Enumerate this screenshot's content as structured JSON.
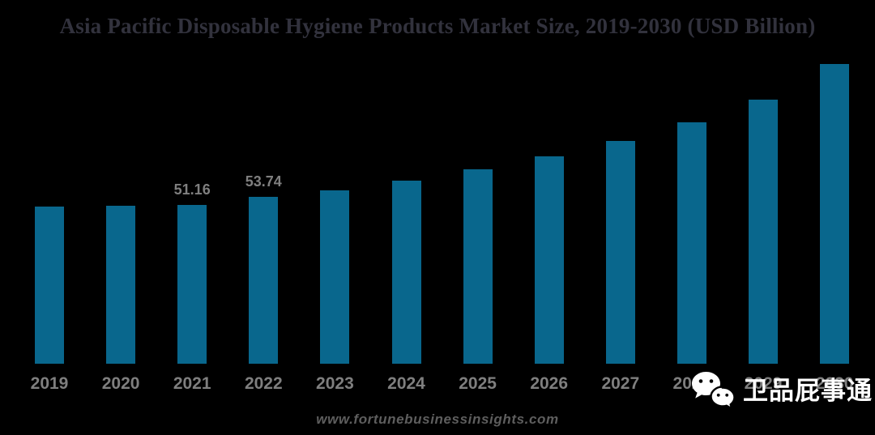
{
  "footer": {
    "website": "www.fortunebusinessinsights.com"
  },
  "watermark": {
    "icon": "wechat-icon",
    "text": "卫品屁事通"
  },
  "colors": {
    "background": "#000000",
    "bar": "#09678D",
    "axis_label": "#7F7F7F",
    "data_label": "#7F7F7F",
    "title": "#32323D",
    "footer": "#5E5E5E",
    "watermark": "#FFFFFF"
  },
  "chart_data": {
    "type": "bar",
    "title": "Asia Pacific Disposable Hygiene Products Market Size, 2019-2030 (USD Billion)",
    "categories": [
      "2019",
      "2020",
      "2021",
      "2022",
      "2023",
      "2024",
      "2025",
      "2026",
      "2027",
      "2028",
      "2029",
      "2030"
    ],
    "values": [
      50.7,
      50.9,
      51.16,
      53.74,
      55.8,
      58.9,
      62.6,
      66.8,
      71.7,
      77.7,
      85.0,
      96.5
    ],
    "data_labels": {
      "2021": "51.16",
      "2022": "53.74"
    },
    "xlabel": "",
    "ylim": [
      0,
      100
    ],
    "grid": false,
    "legend": "none"
  }
}
